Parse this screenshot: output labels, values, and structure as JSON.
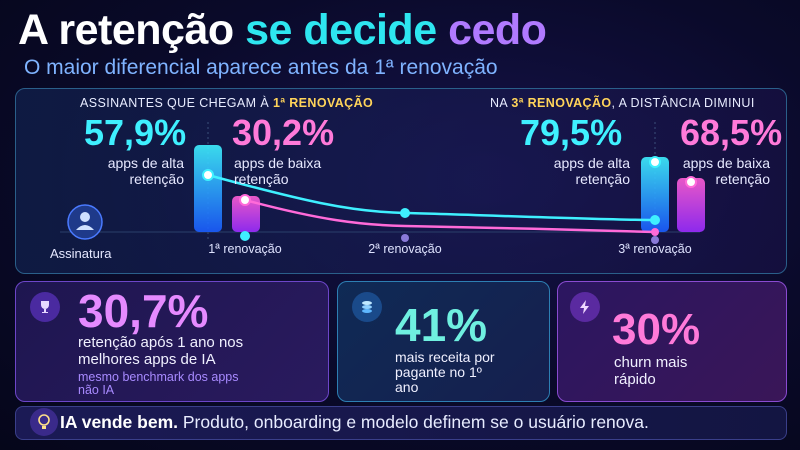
{
  "header": {
    "title": [
      "A retenção",
      "se decide",
      "cedo"
    ],
    "subtitle": "O maior diferencial aparece antes da 1ª renovação"
  },
  "panel": {
    "left_heading": [
      "ASSINANTES QUE CHEGAM À",
      "1ª RENOVAÇÃO"
    ],
    "right_heading": [
      "NA",
      "3ª RENOVAÇÃO",
      ", A DISTÂNCIA DIMINUI"
    ],
    "stats": [
      {
        "value": "57,9%",
        "label": "apps de alta retenção"
      },
      {
        "value": "30,2%",
        "label": "apps de baixa retenção"
      },
      {
        "value": "79,5%",
        "label": "apps de alta retenção"
      },
      {
        "value": "68,5%",
        "label": "apps de baixa retenção"
      }
    ],
    "start_label": "Assinatura",
    "milestones": [
      "1ª renovação",
      "2ª renovação",
      "3ª renovação"
    ]
  },
  "cards": [
    {
      "value": "30,7%",
      "text": "retenção após 1 ano nos melhores apps de IA",
      "note": "mesmo benchmark dos apps não IA"
    },
    {
      "value": "41%",
      "text": "mais receita por pagante no 1º ano"
    },
    {
      "value": "30%",
      "text": "churn mais rápido"
    }
  ],
  "footer": {
    "bold": "IA vende bem.",
    "text": "Produto, onboarding e modelo definem se o usuário renova."
  }
}
